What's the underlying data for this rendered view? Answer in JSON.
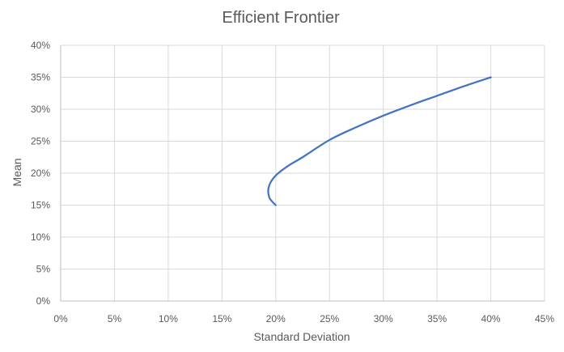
{
  "chart_data": {
    "type": "line",
    "title": "Efficient Frontier",
    "xlabel": "Standard Deviation",
    "ylabel": "Mean",
    "xlim": [
      0,
      45
    ],
    "ylim": [
      0,
      40
    ],
    "x_ticks": [
      "0%",
      "5%",
      "10%",
      "15%",
      "20%",
      "25%",
      "30%",
      "35%",
      "40%",
      "45%"
    ],
    "y_ticks": [
      "0%",
      "5%",
      "10%",
      "15%",
      "20%",
      "25%",
      "30%",
      "35%",
      "40%"
    ],
    "grid": true,
    "legend": "none",
    "series": [
      {
        "color": "#4472c4",
        "points": [
          {
            "x": 20.0,
            "y": 15.0
          },
          {
            "x": 19.7,
            "y": 15.5
          },
          {
            "x": 19.4,
            "y": 16.2
          },
          {
            "x": 19.3,
            "y": 17.3
          },
          {
            "x": 19.5,
            "y": 18.5
          },
          {
            "x": 20.1,
            "y": 19.8
          },
          {
            "x": 21.2,
            "y": 21.2
          },
          {
            "x": 22.5,
            "y": 22.5
          },
          {
            "x": 25.0,
            "y": 25.2
          },
          {
            "x": 27.5,
            "y": 27.2
          },
          {
            "x": 30.0,
            "y": 29.0
          },
          {
            "x": 32.5,
            "y": 30.6
          },
          {
            "x": 35.0,
            "y": 32.1
          },
          {
            "x": 37.5,
            "y": 33.6
          },
          {
            "x": 40.0,
            "y": 35.0
          }
        ]
      }
    ]
  }
}
